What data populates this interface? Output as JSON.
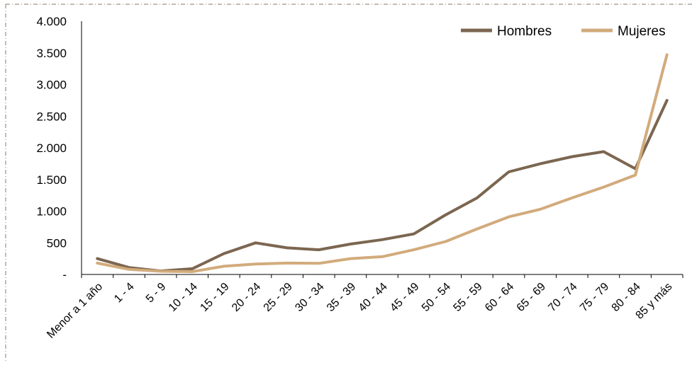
{
  "chart_data": {
    "type": "line",
    "categories": [
      "Menor a 1 año",
      "1 - 4",
      "5 - 9",
      "10 - 14",
      "15 - 19",
      "20 - 24",
      "25 - 29",
      "30 - 34",
      "35 - 39",
      "40 - 44",
      "45 - 49",
      "50 - 54",
      "55 - 59",
      "60 - 64",
      "65 - 69",
      "70 - 74",
      "75 - 79",
      "80 - 84",
      "85 y más"
    ],
    "series": [
      {
        "name": "Hombres",
        "color": "#7b6650",
        "values": [
          250,
          110,
          55,
          90,
          330,
          500,
          420,
          390,
          480,
          550,
          640,
          940,
          1210,
          1620,
          1750,
          1860,
          1940,
          1670,
          2750
        ]
      },
      {
        "name": "Mujeres",
        "color": "#d2ab7c",
        "values": [
          180,
          80,
          50,
          45,
          130,
          165,
          180,
          175,
          250,
          280,
          390,
          520,
          720,
          910,
          1030,
          1210,
          1380,
          1570,
          3470
        ]
      }
    ],
    "y_ticks": [
      "-",
      "500",
      "1.000",
      "1.500",
      "2.000",
      "2.500",
      "3.000",
      "3.500",
      "4.000"
    ],
    "ylim": [
      0,
      4000
    ],
    "legend_position": "top-right",
    "grid": false
  }
}
